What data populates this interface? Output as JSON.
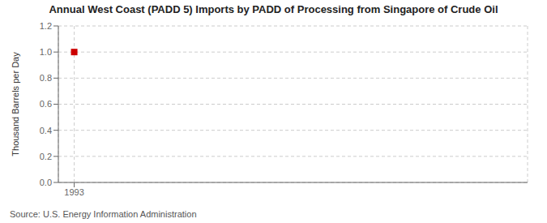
{
  "chart_data": {
    "type": "scatter",
    "title": "Annual West Coast (PADD 5) Imports by PADD of Processing from Singapore of Crude Oil",
    "y_label": "Thousand Barrels per Day",
    "annotations": [
      "Source: U.S. Energy Information Administration"
    ],
    "x": [
      1993
    ],
    "values": [
      1.0
    ],
    "color": "#cc0000",
    "marker": "square",
    "xlim": [
      1992.3,
      2013
    ],
    "xticks": [
      1993
    ],
    "ylim": [
      0,
      1.2
    ],
    "yticks": [
      {
        "value": 0,
        "label": "0.0"
      },
      0.2,
      0.4,
      0.6,
      0.8,
      {
        "value": 1,
        "label": "1.0"
      },
      1.2
    ],
    "grid": true
  }
}
